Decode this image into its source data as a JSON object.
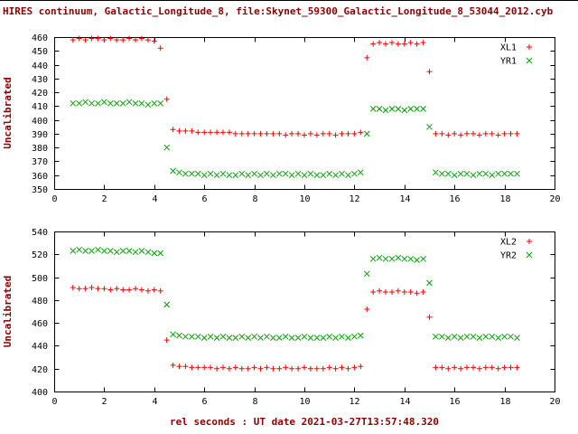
{
  "page": {
    "title": "HIRES continuum, Galactic_Longitude_8, file:Skynet_59300_Galactic_Longitude_8_53044_2012.cyb",
    "xlabel": "rel seconds : UT date 2021-03-27T13:57:48.320"
  },
  "colors": {
    "title_text": "#8b0000",
    "axis": "#000000",
    "red_series": "#ff0000",
    "green_series": "#00a000",
    "background": "#ffffff"
  },
  "chart_data": [
    {
      "type": "scatter",
      "title": "",
      "ylabel": "Uncalibrated",
      "xlabel": "",
      "xlim": [
        0,
        20
      ],
      "ylim": [
        350,
        460
      ],
      "xticks": [
        0,
        2,
        4,
        6,
        8,
        10,
        12,
        14,
        16,
        18,
        20
      ],
      "yticks": [
        350,
        360,
        370,
        380,
        390,
        400,
        410,
        420,
        430,
        440,
        450,
        460
      ],
      "grid": false,
      "legend_position": "top-right",
      "x": [
        0.75,
        1,
        1.25,
        1.5,
        1.75,
        2,
        2.25,
        2.5,
        2.75,
        3,
        3.25,
        3.5,
        3.75,
        4,
        4.25,
        4.5,
        4.75,
        5,
        5.25,
        5.5,
        5.75,
        6,
        6.25,
        6.5,
        6.75,
        7,
        7.25,
        7.5,
        7.75,
        8,
        8.25,
        8.5,
        8.75,
        9,
        9.25,
        9.5,
        9.75,
        10,
        10.25,
        10.5,
        10.75,
        11,
        11.25,
        11.5,
        11.75,
        12,
        12.25,
        12.5,
        12.75,
        13,
        13.25,
        13.5,
        13.75,
        14,
        14.25,
        14.5,
        14.75,
        15,
        15.25,
        15.5,
        15.75,
        16,
        16.25,
        16.5,
        16.75,
        17,
        17.25,
        17.5,
        17.75,
        18,
        18.25,
        18.5
      ],
      "series": [
        {
          "name": "XL1",
          "marker": "plus",
          "color": "#ff0000",
          "y": [
            458,
            459,
            458,
            459,
            459,
            458,
            459,
            458,
            458,
            459,
            458,
            459,
            458,
            457,
            452,
            415,
            393,
            392,
            392,
            392,
            391,
            391,
            391,
            391,
            391,
            391,
            390,
            390,
            390,
            390,
            390,
            390,
            390,
            390,
            389,
            390,
            390,
            389,
            390,
            389,
            390,
            390,
            389,
            390,
            390,
            390,
            391,
            445,
            455,
            456,
            455,
            456,
            455,
            455,
            456,
            455,
            456,
            435,
            390,
            390,
            389,
            390,
            389,
            390,
            390,
            389,
            390,
            390,
            389,
            390,
            390,
            390
          ]
        },
        {
          "name": "YR1",
          "marker": "cross",
          "color": "#00a000",
          "y": [
            412,
            412,
            413,
            412,
            412,
            413,
            412,
            412,
            412,
            413,
            412,
            412,
            411,
            412,
            412,
            380,
            363,
            362,
            361,
            361,
            361,
            360,
            361,
            360,
            361,
            360,
            360,
            361,
            360,
            361,
            360,
            361,
            360,
            361,
            361,
            360,
            361,
            360,
            361,
            360,
            360,
            361,
            360,
            361,
            360,
            361,
            362,
            390,
            408,
            408,
            407,
            408,
            408,
            407,
            408,
            408,
            408,
            395,
            362,
            361,
            361,
            360,
            361,
            361,
            360,
            361,
            361,
            360,
            361,
            361,
            361,
            361
          ]
        }
      ]
    },
    {
      "type": "scatter",
      "title": "",
      "ylabel": "Uncalibrated",
      "xlabel": "rel seconds : UT date 2021-03-27T13:57:48.320",
      "xlim": [
        0,
        20
      ],
      "ylim": [
        400,
        540
      ],
      "xticks": [
        0,
        2,
        4,
        6,
        8,
        10,
        12,
        14,
        16,
        18,
        20
      ],
      "yticks": [
        400,
        420,
        440,
        460,
        480,
        500,
        520,
        540
      ],
      "grid": false,
      "legend_position": "top-right",
      "x": [
        0.75,
        1,
        1.25,
        1.5,
        1.75,
        2,
        2.25,
        2.5,
        2.75,
        3,
        3.25,
        3.5,
        3.75,
        4,
        4.25,
        4.5,
        4.75,
        5,
        5.25,
        5.5,
        5.75,
        6,
        6.25,
        6.5,
        6.75,
        7,
        7.25,
        7.5,
        7.75,
        8,
        8.25,
        8.5,
        8.75,
        9,
        9.25,
        9.5,
        9.75,
        10,
        10.25,
        10.5,
        10.75,
        11,
        11.25,
        11.5,
        11.75,
        12,
        12.25,
        12.5,
        12.75,
        13,
        13.25,
        13.5,
        13.75,
        14,
        14.25,
        14.5,
        14.75,
        15,
        15.25,
        15.5,
        15.75,
        16,
        16.25,
        16.5,
        16.75,
        17,
        17.25,
        17.5,
        17.75,
        18,
        18.25,
        18.5
      ],
      "series": [
        {
          "name": "XL2",
          "marker": "plus",
          "color": "#ff0000",
          "y": [
            491,
            490,
            490,
            491,
            490,
            490,
            489,
            490,
            489,
            489,
            490,
            489,
            488,
            489,
            488,
            445,
            423,
            422,
            422,
            421,
            421,
            421,
            421,
            420,
            421,
            420,
            421,
            420,
            420,
            421,
            420,
            421,
            420,
            420,
            421,
            420,
            420,
            421,
            420,
            420,
            420,
            421,
            420,
            421,
            420,
            421,
            422,
            472,
            487,
            488,
            487,
            487,
            488,
            487,
            487,
            486,
            487,
            465,
            421,
            421,
            420,
            421,
            420,
            421,
            421,
            420,
            421,
            421,
            420,
            421,
            421,
            421
          ]
        },
        {
          "name": "YR2",
          "marker": "cross",
          "color": "#00a000",
          "y": [
            523,
            524,
            523,
            523,
            524,
            523,
            523,
            522,
            523,
            523,
            522,
            523,
            522,
            521,
            521,
            476,
            450,
            449,
            448,
            448,
            448,
            447,
            448,
            447,
            448,
            447,
            447,
            448,
            447,
            448,
            447,
            448,
            447,
            447,
            448,
            447,
            447,
            448,
            447,
            447,
            447,
            448,
            447,
            448,
            447,
            448,
            449,
            503,
            516,
            517,
            516,
            516,
            517,
            516,
            516,
            515,
            516,
            495,
            448,
            448,
            447,
            448,
            447,
            448,
            448,
            447,
            448,
            448,
            447,
            448,
            448,
            447
          ]
        }
      ]
    }
  ]
}
